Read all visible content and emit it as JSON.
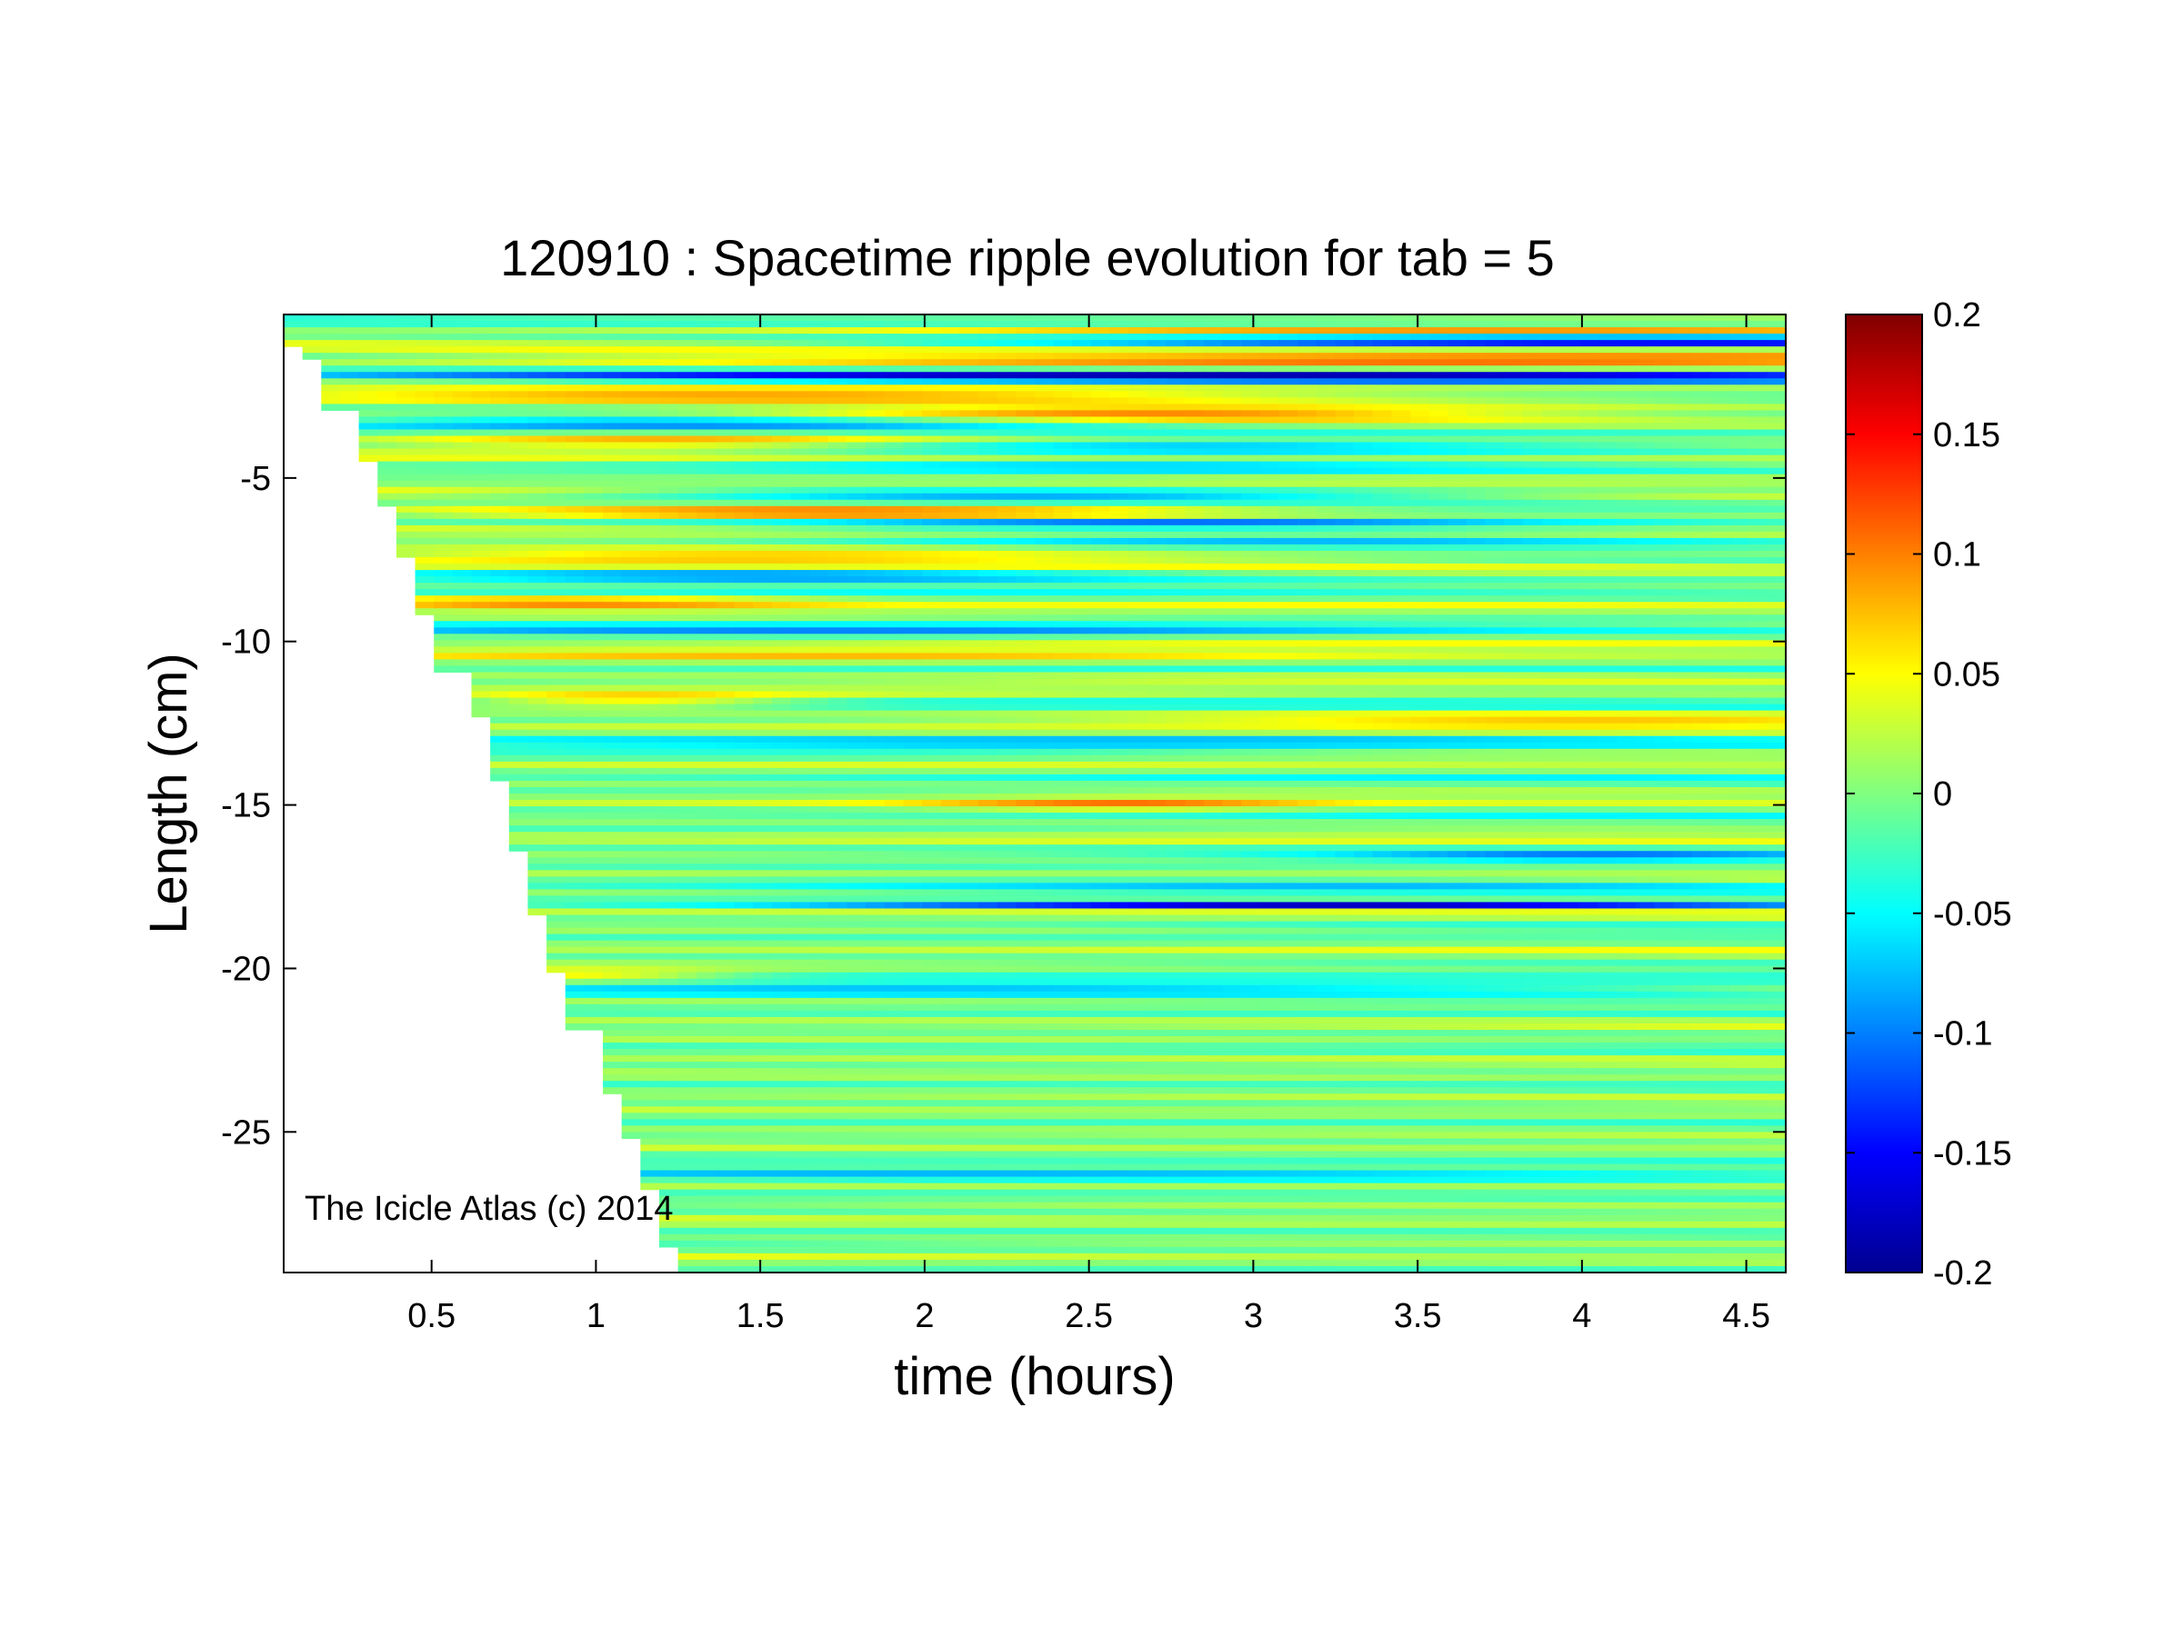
{
  "chart_data": {
    "type": "heatmap",
    "title": "120910 : Spacetime ripple evolution for tab = 5",
    "xlabel": "time (hours)",
    "ylabel": "Length (cm)",
    "xlim": [
      0.05,
      4.62
    ],
    "ylim": [
      -29.3,
      0.0
    ],
    "xticks": [
      {
        "value": 0.5,
        "label": "0.5"
      },
      {
        "value": 1,
        "label": "1"
      },
      {
        "value": 1.5,
        "label": "1.5"
      },
      {
        "value": 2,
        "label": "2"
      },
      {
        "value": 2.5,
        "label": "2.5"
      },
      {
        "value": 3,
        "label": "3"
      },
      {
        "value": 3.5,
        "label": "3.5"
      },
      {
        "value": 4,
        "label": "4"
      },
      {
        "value": 4.5,
        "label": "4.5"
      }
    ],
    "yticks": [
      {
        "value": -5,
        "label": "-5"
      },
      {
        "value": -10,
        "label": "-10"
      },
      {
        "value": -15,
        "label": "-15"
      },
      {
        "value": -20,
        "label": "-20"
      },
      {
        "value": -25,
        "label": "-25"
      }
    ],
    "colorbar": {
      "colormap": "jet",
      "clim": [
        -0.2,
        0.2
      ],
      "ticks": [
        {
          "value": 0.2,
          "label": "0.2"
        },
        {
          "value": 0.15,
          "label": "0.15"
        },
        {
          "value": 0.1,
          "label": "0.1"
        },
        {
          "value": 0.05,
          "label": "0.05"
        },
        {
          "value": 0,
          "label": "0"
        },
        {
          "value": -0.05,
          "label": "-0.05"
        },
        {
          "value": -0.1,
          "label": "-0.1"
        },
        {
          "value": -0.15,
          "label": "-0.15"
        },
        {
          "value": -0.2,
          "label": "-0.2"
        }
      ]
    },
    "annotation": "The Icicle Atlas (c) 2014",
    "growth_front": [
      [
        0.05,
        -1.0
      ],
      [
        0.12,
        -1.3
      ],
      [
        0.18,
        -3.0
      ],
      [
        0.25,
        -4.5
      ],
      [
        0.33,
        -5.8
      ],
      [
        0.4,
        -7.4
      ],
      [
        0.47,
        -9.2
      ],
      [
        0.53,
        -10.9
      ],
      [
        0.6,
        -12.3
      ],
      [
        0.67,
        -14.3
      ],
      [
        0.73,
        -16.5
      ],
      [
        0.8,
        -18.3
      ],
      [
        0.87,
        -20.1
      ],
      [
        0.93,
        -21.8
      ],
      [
        1.0,
        -23.8
      ],
      [
        1.07,
        -25.2
      ],
      [
        1.13,
        -26.8
      ],
      [
        1.2,
        -28.5
      ],
      [
        1.27,
        -29.3
      ]
    ],
    "bands": [
      {
        "y": -0.5,
        "amp": 0.09,
        "width": 0.18,
        "x_peak": 4.0,
        "spread": 2.6
      },
      {
        "y": -0.8,
        "amp": -0.16,
        "width": 0.2,
        "x_peak": 4.2,
        "spread": 2.2
      },
      {
        "y": -1.4,
        "amp": 0.14,
        "width": 0.25,
        "x_peak": 3.5,
        "spread": 3.0
      },
      {
        "y": -1.9,
        "amp": -0.19,
        "width": 0.22,
        "x_peak": 3.0,
        "spread": 3.0
      },
      {
        "y": -2.5,
        "amp": 0.12,
        "width": 0.25,
        "x_peak": 1.5,
        "spread": 2.0
      },
      {
        "y": -3.1,
        "amp": 0.12,
        "width": 0.28,
        "x_peak": 2.6,
        "spread": 1.2
      },
      {
        "y": -3.3,
        "amp": -0.17,
        "width": 0.2,
        "x_peak": 1.5,
        "spread": 1.5
      },
      {
        "y": -3.9,
        "amp": 0.11,
        "width": 0.25,
        "x_peak": 1.2,
        "spread": 1.0
      },
      {
        "y": -4.1,
        "amp": -0.08,
        "width": 0.2,
        "x_peak": 2.8,
        "spread": 1.3
      },
      {
        "y": -4.6,
        "amp": -0.06,
        "width": 0.25,
        "x_peak": 2.5,
        "spread": 1.5
      },
      {
        "y": -5.2,
        "amp": 0.06,
        "width": 0.25,
        "x_peak": 2.0,
        "spread": 2.5
      },
      {
        "y": -5.5,
        "amp": -0.15,
        "width": 0.22,
        "x_peak": 2.3,
        "spread": 1.4
      },
      {
        "y": -6.1,
        "amp": 0.14,
        "width": 0.25,
        "x_peak": 1.8,
        "spread": 1.3
      },
      {
        "y": -6.4,
        "amp": -0.12,
        "width": 0.2,
        "x_peak": 2.6,
        "spread": 1.3
      },
      {
        "y": -6.9,
        "amp": -0.06,
        "width": 0.25,
        "x_peak": 3.0,
        "spread": 1.5
      },
      {
        "y": -7.4,
        "amp": 0.12,
        "width": 0.25,
        "x_peak": 1.5,
        "spread": 1.5
      },
      {
        "y": -8.0,
        "amp": -0.12,
        "width": 0.22,
        "x_peak": 1.5,
        "spread": 1.3
      },
      {
        "y": -8.8,
        "amp": 0.08,
        "width": 0.25,
        "x_peak": 0.9,
        "spread": 0.8
      },
      {
        "y": -9.6,
        "amp": -0.05,
        "width": 0.3,
        "x_peak": 1.5,
        "spread": 2.0
      },
      {
        "y": -10.5,
        "amp": 0.05,
        "width": 0.3,
        "x_peak": 2.0,
        "spread": 2.5
      },
      {
        "y": -11.8,
        "amp": 0.08,
        "width": 0.22,
        "x_peak": 1.1,
        "spread": 0.5
      },
      {
        "y": -12.5,
        "amp": 0.05,
        "width": 0.3,
        "x_peak": 4.0,
        "spread": 1.2
      },
      {
        "y": -13.2,
        "amp": -0.05,
        "width": 0.3,
        "x_peak": 2.0,
        "spread": 2.5
      },
      {
        "y": -15.0,
        "amp": 0.07,
        "width": 0.2,
        "x_peak": 2.6,
        "spread": 0.6
      },
      {
        "y": -16.6,
        "amp": -0.09,
        "width": 0.15,
        "x_peak": 4.0,
        "spread": 0.8
      },
      {
        "y": -17.4,
        "amp": -0.05,
        "width": 0.3,
        "x_peak": 3.0,
        "spread": 2.0
      },
      {
        "y": -18.1,
        "amp": -0.2,
        "width": 0.07,
        "x_peak": 3.3,
        "spread": 1.6
      },
      {
        "y": -20.2,
        "amp": 0.08,
        "width": 0.2,
        "x_peak": 0.9,
        "spread": 0.5
      },
      {
        "y": -20.6,
        "amp": -0.09,
        "width": 0.25,
        "x_peak": 2.5,
        "spread": 3.0
      },
      {
        "y": -26.3,
        "amp": -0.07,
        "width": 0.25,
        "x_peak": 2.5,
        "spread": 3.0
      }
    ]
  }
}
